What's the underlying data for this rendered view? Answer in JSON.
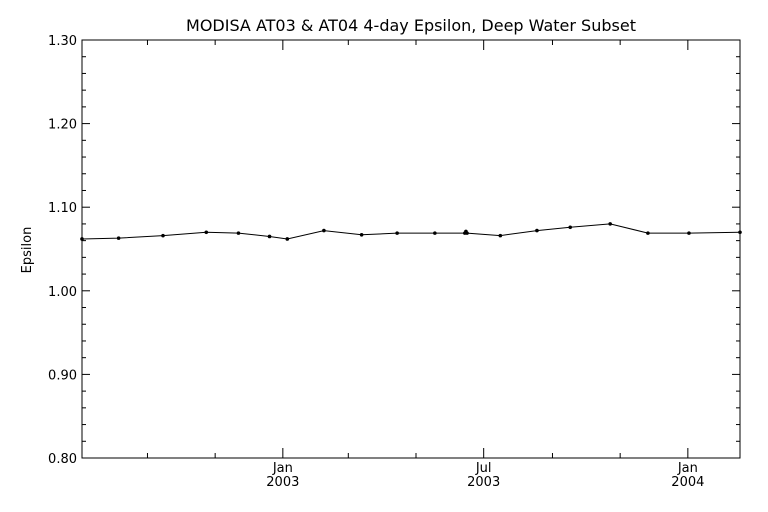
{
  "chart_data": {
    "type": "line",
    "title": "MODISA AT03 & AT04 4-day Epsilon, Deep Water Subset",
    "xlabel": "",
    "ylabel": "Epsilon",
    "ylim": [
      0.8,
      1.3
    ],
    "xlim": [
      "2002-07-04",
      "2004-02-17"
    ],
    "grid": false,
    "y_ticks": [
      "0.80",
      "0.90",
      "1.00",
      "1.10",
      "1.20",
      "1.30"
    ],
    "x_major_ticks": [
      {
        "date": "2003-01-01",
        "label": [
          "Jan",
          "2003"
        ]
      },
      {
        "date": "2003-07-01",
        "label": [
          "Jul",
          "2003"
        ]
      },
      {
        "date": "2004-01-01",
        "label": [
          "Jan",
          "2004"
        ]
      }
    ],
    "x_minor_ticks": [
      "2002-09-01",
      "2002-11-01",
      "2003-03-01",
      "2003-05-01",
      "2003-09-01",
      "2003-11-01"
    ],
    "series": [
      {
        "color": "#000000",
        "x": [
          "2002-07-04",
          "2002-08-06",
          "2002-09-15",
          "2002-10-24",
          "2002-11-22",
          "2002-12-20",
          "2003-01-05",
          "2003-02-07",
          "2003-03-13",
          "2003-04-14",
          "2003-05-18",
          "2003-06-14",
          "2003-06-15",
          "2003-06-16",
          "2003-07-16",
          "2003-08-18",
          "2003-09-17",
          "2003-10-23",
          "2003-11-26",
          "2004-01-02",
          "2004-02-17"
        ],
        "values": [
          1.062,
          1.063,
          1.066,
          1.07,
          1.069,
          1.065,
          1.062,
          1.072,
          1.067,
          1.069,
          1.069,
          1.069,
          1.071,
          1.069,
          1.066,
          1.072,
          1.076,
          1.08,
          1.069,
          1.069,
          1.07
        ]
      }
    ]
  }
}
